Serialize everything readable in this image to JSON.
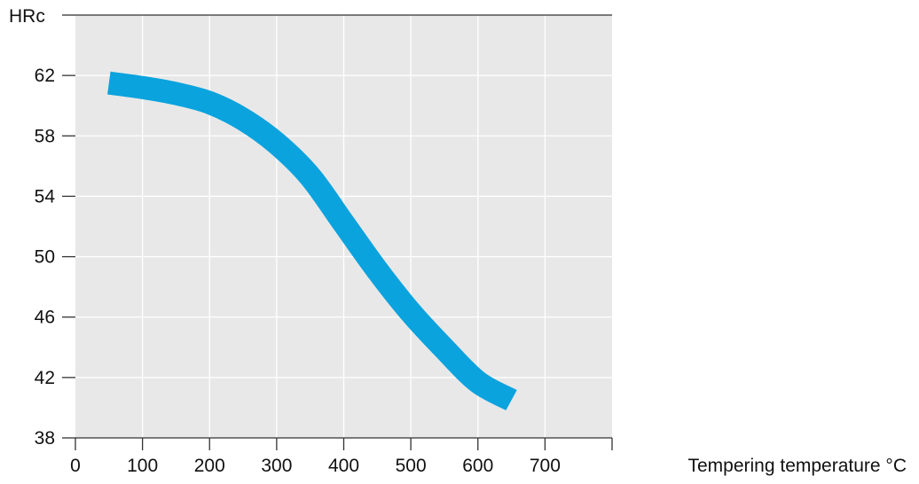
{
  "chart_data": {
    "type": "line",
    "ylabel": "HRc",
    "xlabel": "Tempering temperature °C",
    "xlim": [
      0,
      800
    ],
    "ylim": [
      38,
      66
    ],
    "x_ticks": [
      "0",
      "100",
      "200",
      "300",
      "400",
      "500",
      "600",
      "700"
    ],
    "y_ticks": [
      "38",
      "42",
      "46",
      "50",
      "54",
      "58",
      "62"
    ],
    "grid": true,
    "background_color": "#e8e8e8",
    "series": [
      {
        "color": "#0aa3de",
        "x": [
          50,
          100,
          150,
          200,
          250,
          300,
          350,
          400,
          450,
          500,
          550,
          600,
          650
        ],
        "y": [
          61.5,
          61.2,
          60.8,
          60.2,
          59.1,
          57.5,
          55.3,
          52.2,
          49.1,
          46.3,
          43.9,
          41.7,
          40.5
        ]
      }
    ]
  }
}
